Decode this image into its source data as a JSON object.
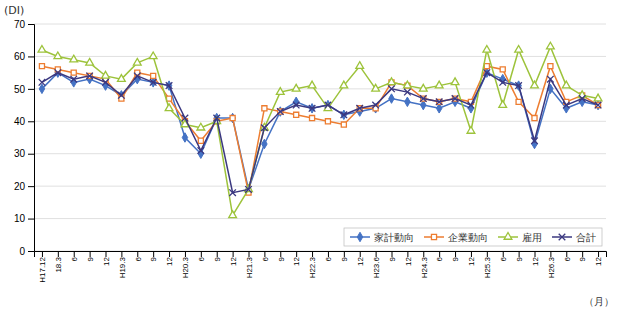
{
  "chart_data": {
    "type": "line",
    "y_label": "(DI)",
    "x_label": "（月）",
    "categories": [
      "H17.12",
      "18.3",
      "6",
      "9",
      "12",
      "H19.3",
      "6",
      "9",
      "12",
      "H20.3",
      "6",
      "9",
      "12",
      "H21.3",
      "6",
      "9",
      "12",
      "H22.3",
      "6",
      "9",
      "12",
      "H23.6",
      "9",
      "12",
      "H24.3",
      "6",
      "9",
      "12",
      "H25.3",
      "6",
      "9",
      "12",
      "H26.3",
      "6",
      "9",
      "12"
    ],
    "series": [
      {
        "name": "家計動向",
        "color": "#4472C4",
        "marker": "diamond",
        "values": [
          50,
          55,
          52,
          53,
          51,
          48,
          53,
          52,
          51,
          35,
          30,
          41,
          41,
          19,
          33,
          43,
          46,
          44,
          45,
          42,
          43,
          44,
          47,
          46,
          45,
          44,
          46,
          44,
          55,
          53,
          51,
          33,
          50,
          44,
          46,
          45
        ]
      },
      {
        "name": "企業動向",
        "color": "#ED7D31",
        "marker": "square",
        "values": [
          57,
          56,
          55,
          54,
          53,
          47,
          55,
          54,
          47,
          40,
          34,
          40,
          41,
          18,
          44,
          43,
          42,
          41,
          40,
          39,
          44,
          44,
          52,
          51,
          47,
          46,
          47,
          46,
          57,
          56,
          46,
          41,
          57,
          46,
          48,
          45
        ]
      },
      {
        "name": "雇用",
        "color": "#9DC33B",
        "marker": "triangle",
        "values": [
          62,
          60,
          59,
          58,
          54,
          53,
          58,
          60,
          44,
          39,
          38,
          40,
          11,
          19,
          38,
          49,
          50,
          51,
          44,
          51,
          57,
          50,
          52,
          51,
          50,
          51,
          52,
          37,
          62,
          45,
          62,
          51,
          63,
          51,
          48,
          47
        ]
      },
      {
        "name": "合計",
        "color": "#3B3880",
        "marker": "x",
        "values": [
          52,
          55,
          53,
          54,
          52,
          48,
          54,
          52,
          51,
          41,
          31,
          41,
          18,
          19,
          38,
          43,
          45,
          44,
          45,
          42,
          44,
          45,
          50,
          49,
          47,
          46,
          47,
          45,
          55,
          52,
          51,
          34,
          53,
          45,
          47,
          45
        ]
      }
    ],
    "ylim": [
      0,
      70
    ],
    "yticks": [
      0,
      10,
      20,
      30,
      40,
      50,
      60,
      70
    ],
    "grid": true,
    "legend": "lower right"
  }
}
